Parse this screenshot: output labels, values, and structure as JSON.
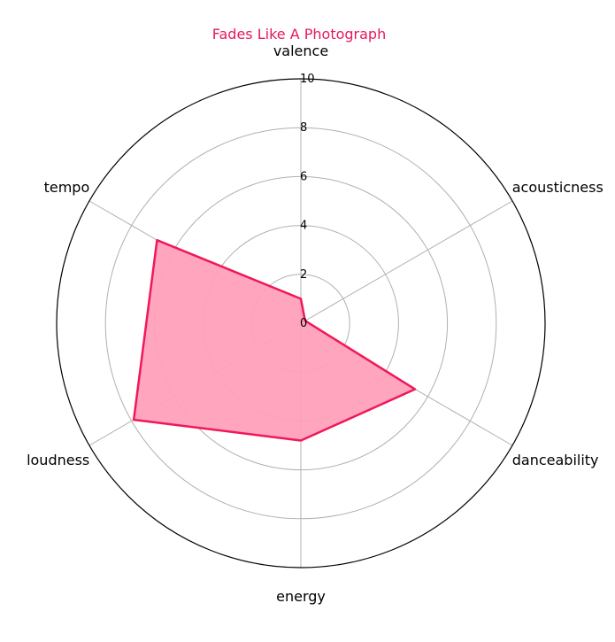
{
  "chart_data": {
    "type": "radar",
    "title": "Fades Like A Photograph",
    "axes": [
      "valence",
      "acousticness",
      "danceability",
      "energy",
      "loudness",
      "tempo"
    ],
    "series": [
      {
        "values": [
          1.0,
          0.2,
          5.4,
          4.8,
          7.9,
          6.8
        ]
      }
    ],
    "rlim": [
      0,
      10
    ],
    "rticks": [
      "0",
      "2",
      "4",
      "6",
      "8",
      "10"
    ],
    "grid": true,
    "colors": {
      "title": "#e8185a",
      "line": "#f0185a",
      "fill": "#ffa0b9",
      "grid": "#b0b0b0",
      "frame": "#000000"
    }
  }
}
